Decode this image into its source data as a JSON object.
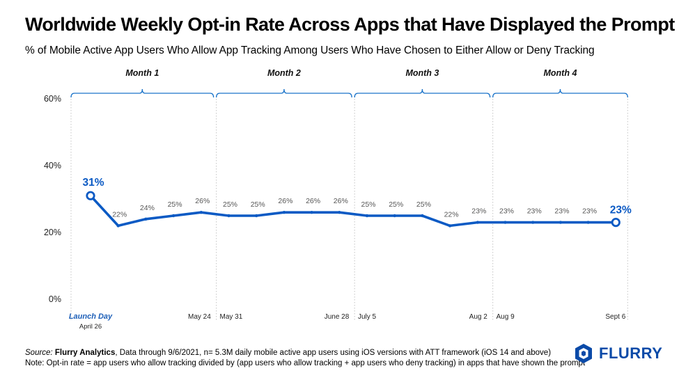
{
  "title": "Worldwide Weekly Opt-in Rate Across Apps that Have Displayed the Prompt",
  "subtitle": "% of Mobile Active App Users Who Allow App Tracking Among Users Who Have Chosen to Either Allow or Deny Tracking",
  "footer": {
    "source_prefix": "Source:",
    "source_name": "Flurry Analytics",
    "source_text": ", Data through 9/6/2021, n= 5.3M daily mobile active app users using iOS versions with ATT framework (iOS 14 and above)",
    "note": "Note: Opt-in rate = app users who allow tracking divided by (app users who allow tracking + app users who deny tracking) in apps that have shown the prompt"
  },
  "logo": {
    "text": "FLURRY",
    "brand_color": "#0a4aa8"
  },
  "chart_data": {
    "type": "line",
    "ylim": [
      0,
      60
    ],
    "yticks": [
      0,
      20,
      40,
      60
    ],
    "ytick_labels": [
      "0%",
      "20%",
      "40%",
      "60%"
    ],
    "grid": false,
    "line_color": "#0b5ac4",
    "months": [
      "Month 1",
      "Month 2",
      "Month 3",
      "Month 4"
    ],
    "series": [
      {
        "values": [
          31,
          22,
          24,
          25,
          26,
          25,
          25,
          26,
          26,
          26,
          25,
          25,
          25,
          22,
          23,
          23,
          23,
          23,
          23,
          23
        ],
        "labels": [
          "31%",
          "22%",
          "24%",
          "25%",
          "26%",
          "25%",
          "25%",
          "26%",
          "26%",
          "26%",
          "25%",
          "25%",
          "25%",
          "22%",
          "23%",
          "23%",
          "23%",
          "23%",
          "23%",
          "23%"
        ]
      }
    ],
    "x_date_labels": [
      {
        "index": 0,
        "text": "Launch Day"
      },
      {
        "index": 0,
        "text": "April 26"
      },
      {
        "index": 4,
        "text": "May 24"
      },
      {
        "index": 5,
        "text": "May 31"
      },
      {
        "index": 9,
        "text": "June 28"
      },
      {
        "index": 10,
        "text": "July 5"
      },
      {
        "index": 14,
        "text": "Aug 2"
      },
      {
        "index": 15,
        "text": "Aug 9"
      },
      {
        "index": 19,
        "text": "Sept 6"
      }
    ]
  }
}
